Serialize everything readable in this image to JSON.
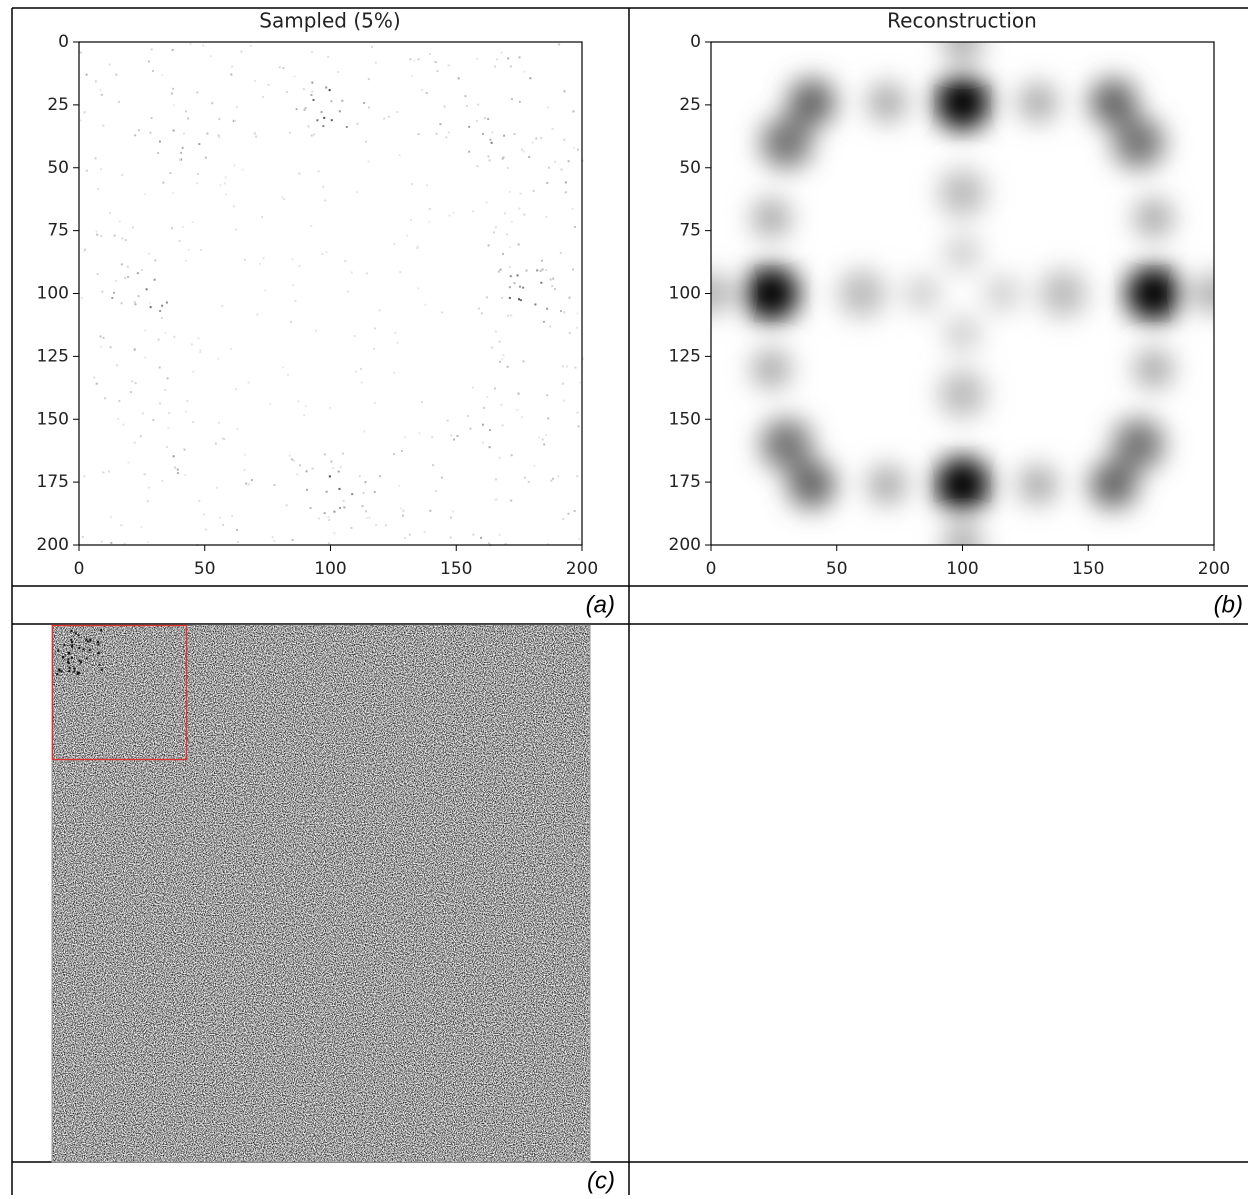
{
  "panels": [
    {
      "title": "Sampled (5%)",
      "xticks": [
        0,
        50,
        100,
        150,
        200
      ],
      "yticks": [
        0,
        25,
        50,
        75,
        100,
        125,
        150,
        175,
        200
      ],
      "caption": "(a)"
    },
    {
      "title": "Reconstruction",
      "xticks": [
        0,
        50,
        100,
        150,
        200
      ],
      "yticks": [
        0,
        25,
        50,
        75,
        100,
        125,
        150,
        175,
        200
      ],
      "caption": "(b)"
    },
    {
      "caption": "(c)"
    }
  ]
}
